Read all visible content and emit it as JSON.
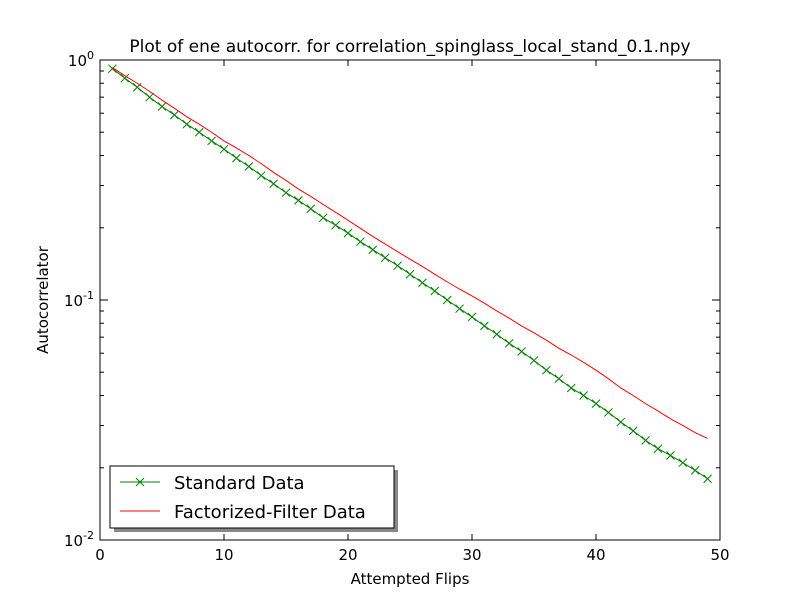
{
  "chart_data": {
    "type": "line",
    "title": "Plot of ene autocorr. for correlation_spinglass_local_stand_0.1.npy",
    "xlabel": "Attempted  Flips",
    "ylabel": "Autocorrelator",
    "xlim": [
      0,
      50
    ],
    "ylim": [
      0.01,
      1
    ],
    "yscale": "log",
    "xticks": [
      0,
      10,
      20,
      30,
      40,
      50
    ],
    "yticks": [
      {
        "value": 1,
        "base": "10",
        "exp": "0"
      },
      {
        "value": 0.1,
        "base": "10",
        "exp": "-1"
      },
      {
        "value": 0.01,
        "base": "10",
        "exp": "-2"
      }
    ],
    "legend_position": "lower-left",
    "grid": false,
    "series": [
      {
        "name": "Standard Data",
        "color": "#008000",
        "marker": "x",
        "x": [
          1,
          2,
          3,
          4,
          5,
          6,
          7,
          8,
          9,
          10,
          11,
          12,
          13,
          14,
          15,
          16,
          17,
          18,
          19,
          20,
          21,
          22,
          23,
          24,
          25,
          26,
          27,
          28,
          29,
          30,
          31,
          32,
          33,
          34,
          35,
          36,
          37,
          38,
          39,
          40,
          41,
          42,
          43,
          44,
          45,
          46,
          47,
          48,
          49
        ],
        "values": [
          0.92,
          0.84,
          0.77,
          0.7,
          0.64,
          0.59,
          0.54,
          0.5,
          0.46,
          0.425,
          0.39,
          0.36,
          0.33,
          0.305,
          0.28,
          0.26,
          0.24,
          0.22,
          0.205,
          0.19,
          0.175,
          0.162,
          0.15,
          0.139,
          0.128,
          0.118,
          0.109,
          0.1,
          0.092,
          0.085,
          0.078,
          0.072,
          0.066,
          0.061,
          0.056,
          0.051,
          0.047,
          0.043,
          0.04,
          0.037,
          0.034,
          0.031,
          0.0285,
          0.026,
          0.024,
          0.0225,
          0.021,
          0.0195,
          0.018
        ]
      },
      {
        "name": "Factorized-Filter Data",
        "color": "#ff0000",
        "marker": "none",
        "x": [
          1,
          2,
          3,
          4,
          5,
          6,
          7,
          8,
          9,
          10,
          11,
          12,
          13,
          14,
          15,
          16,
          17,
          18,
          19,
          20,
          21,
          22,
          23,
          24,
          25,
          26,
          27,
          28,
          29,
          30,
          31,
          32,
          33,
          34,
          35,
          36,
          37,
          38,
          39,
          40,
          41,
          42,
          43,
          44,
          45,
          46,
          47,
          48,
          49
        ],
        "values": [
          0.93,
          0.86,
          0.8,
          0.74,
          0.68,
          0.63,
          0.58,
          0.54,
          0.5,
          0.46,
          0.43,
          0.4,
          0.37,
          0.34,
          0.315,
          0.29,
          0.27,
          0.25,
          0.232,
          0.215,
          0.199,
          0.184,
          0.171,
          0.159,
          0.148,
          0.138,
          0.128,
          0.119,
          0.111,
          0.104,
          0.097,
          0.09,
          0.084,
          0.078,
          0.073,
          0.068,
          0.063,
          0.059,
          0.055,
          0.051,
          0.047,
          0.043,
          0.04,
          0.037,
          0.0345,
          0.032,
          0.03,
          0.028,
          0.0265
        ]
      }
    ]
  }
}
